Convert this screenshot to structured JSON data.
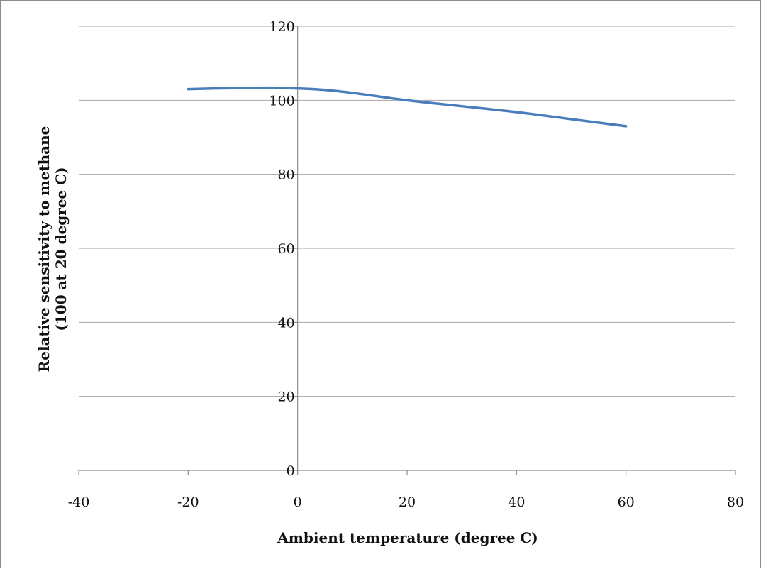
{
  "chart_data": {
    "type": "line",
    "xlabel": "Ambient temperature (degree C)",
    "ylabel_lines": [
      "Relative sensitivity to methane",
      "(100 at 20 degree C)"
    ],
    "xlim": [
      -40,
      80
    ],
    "ylim": [
      0,
      120
    ],
    "x_ticks": [
      -40,
      -20,
      0,
      20,
      40,
      60,
      80
    ],
    "x_tick_labels": [
      "-40",
      "-20",
      "0",
      "20",
      "40",
      "60",
      "80"
    ],
    "y_ticks": [
      0,
      20,
      40,
      60,
      80,
      100,
      120
    ],
    "y_tick_labels": [
      "0",
      "20",
      "40",
      "60",
      "80",
      "100",
      "120"
    ],
    "grid": "horizontal",
    "legend": "none",
    "series": [
      {
        "color": "#4a7ebb",
        "x": [
          -20,
          -15,
          -10,
          -5,
          0,
          5,
          10,
          20,
          30,
          40,
          50,
          60
        ],
        "y": [
          103,
          103.2,
          103.3,
          103.4,
          103.2,
          102.8,
          102,
          100,
          98.4,
          96.8,
          94.9,
          93
        ]
      }
    ]
  }
}
